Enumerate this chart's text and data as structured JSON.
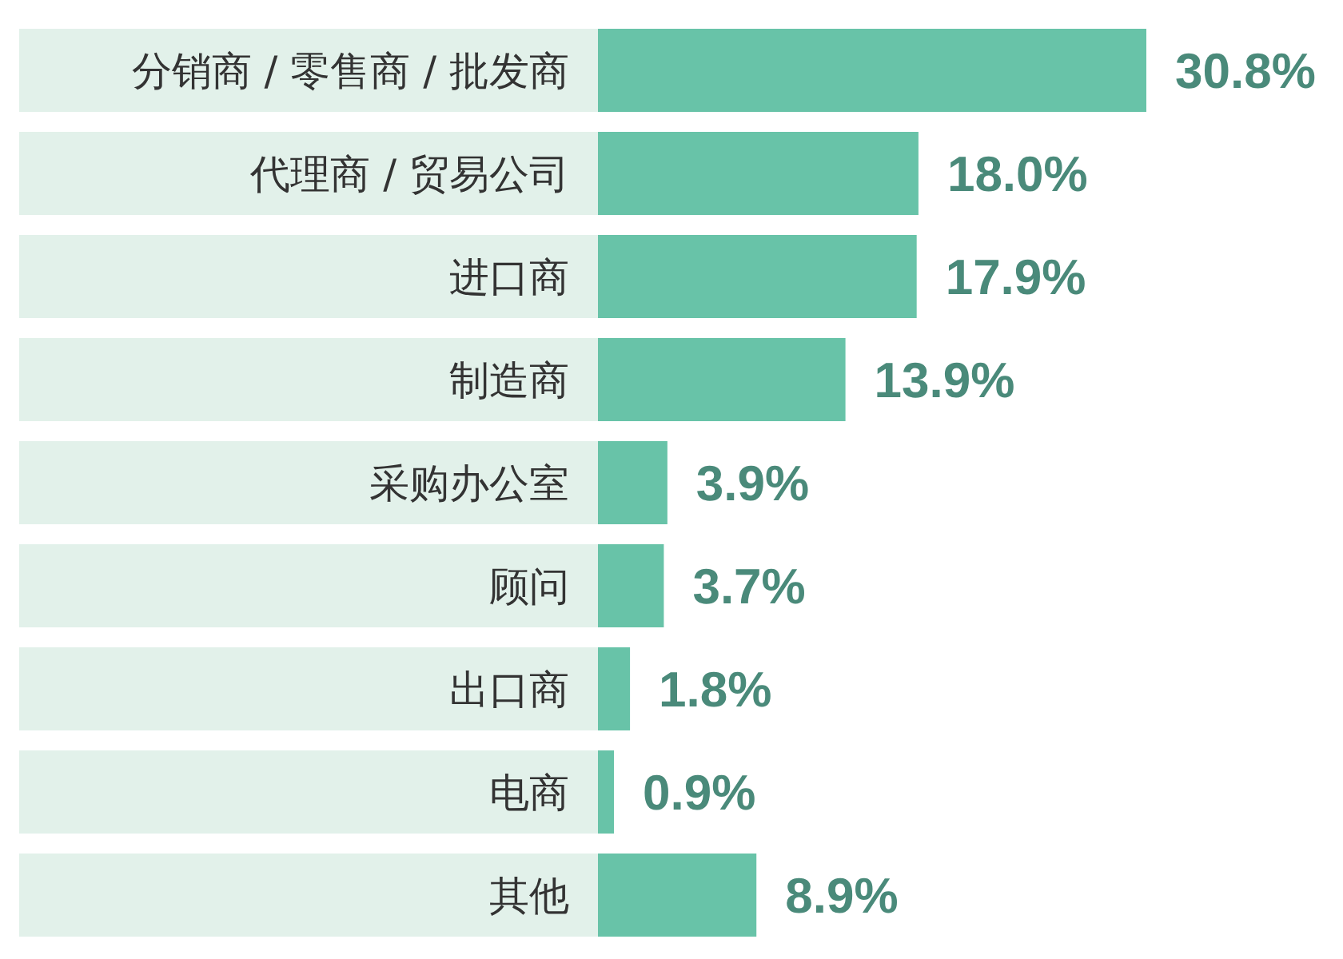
{
  "chart_data": {
    "type": "bar",
    "orientation": "horizontal",
    "categories": [
      "分销商 / 零售商 / 批发商",
      "代理商 / 贸易公司",
      "进口商",
      "制造商",
      "采购办公室",
      "顾问",
      "出口商",
      "电商",
      "其他"
    ],
    "values": [
      30.8,
      18.0,
      17.9,
      13.9,
      3.9,
      3.7,
      1.8,
      0.9,
      8.9
    ],
    "value_labels": [
      "30.8%",
      "18.0%",
      "17.9%",
      "13.9%",
      "3.9%",
      "3.7%",
      "1.8%",
      "0.9%",
      "8.9%"
    ],
    "color": "#68c3a8"
  }
}
